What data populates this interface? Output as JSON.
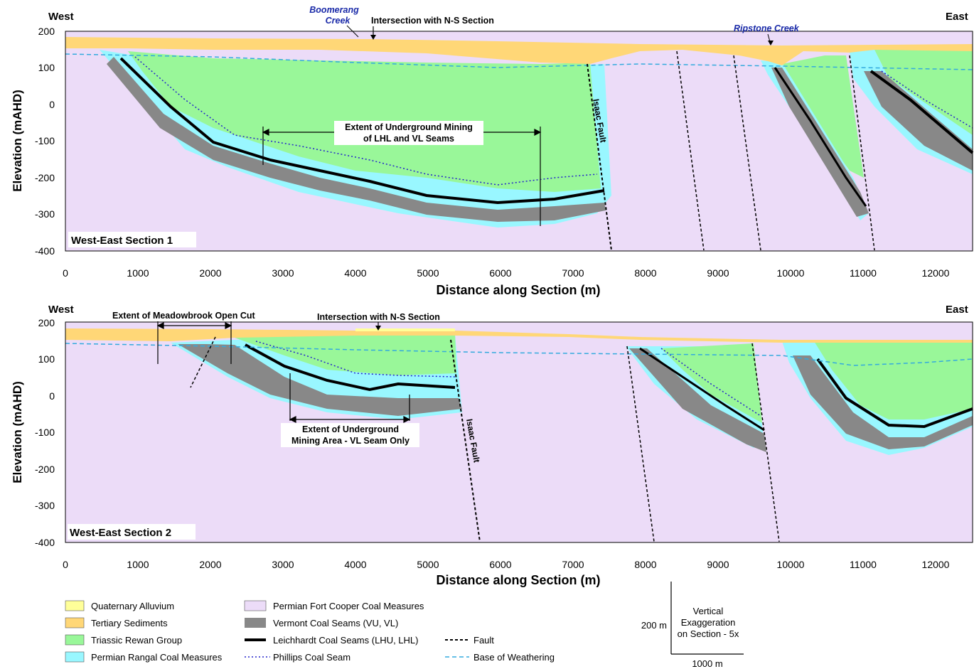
{
  "colors": {
    "quaternary": "#ffff99",
    "tertiary": "#ffd777",
    "rewan": "#99f799",
    "rangal": "#99f7ff",
    "fort_cooper": "#ecdcf8",
    "vermont": "#888888",
    "leichhardt": "#000000",
    "phillips": "#2222cc",
    "weathering": "#33aadd",
    "fault": "#000000",
    "creek_label": "#1a2aa8"
  },
  "shared": {
    "west": "West",
    "east": "East",
    "ylabel": "Elevation (mAHD)",
    "xlabel": "Distance along Section (m)",
    "yticks": [
      "200",
      "100",
      "0",
      "-100",
      "-200",
      "-300",
      "-400"
    ],
    "xticks": [
      "0",
      "1000",
      "2000",
      "3000",
      "4000",
      "5000",
      "6000",
      "7000",
      "8000",
      "9000",
      "10000",
      "11000",
      "12000"
    ],
    "isaac_fault": "Isaac Fault"
  },
  "section1": {
    "title": "West-East Section 1",
    "boomerang_1": "Boomerang",
    "boomerang_2": "Creek",
    "intersection": "Intersection with N-S Section",
    "ripstone": "Ripstone Creek",
    "mining_1": "Extent of Underground Mining",
    "mining_2": "of LHL and VL Seams"
  },
  "section2": {
    "title": "West-East Section 2",
    "meadowbrook": "Extent of Meadowbrook Open Cut",
    "intersection": "Intersection with N-S Section",
    "mining_1": "Extent of Underground",
    "mining_2": "Mining Area - VL Seam Only"
  },
  "legend": {
    "items": [
      "Quaternary Alluvium",
      "Tertiary Sediments",
      "Triassic Rewan Group",
      "Permian Rangal Coal Measures",
      "Permian Fort Cooper Coal Measures",
      "Vermont Coal Seams (VU, VL)",
      "Leichhardt Coal Seams (LHU, LHL)",
      "Phillips Coal Seam",
      "Fault",
      "Base of Weathering"
    ]
  },
  "scale": {
    "vertical": "200 m",
    "horizontal": "1000 m",
    "exag_1": "Vertical",
    "exag_2": "Exaggeration",
    "exag_3": "on Section - 5x"
  }
}
